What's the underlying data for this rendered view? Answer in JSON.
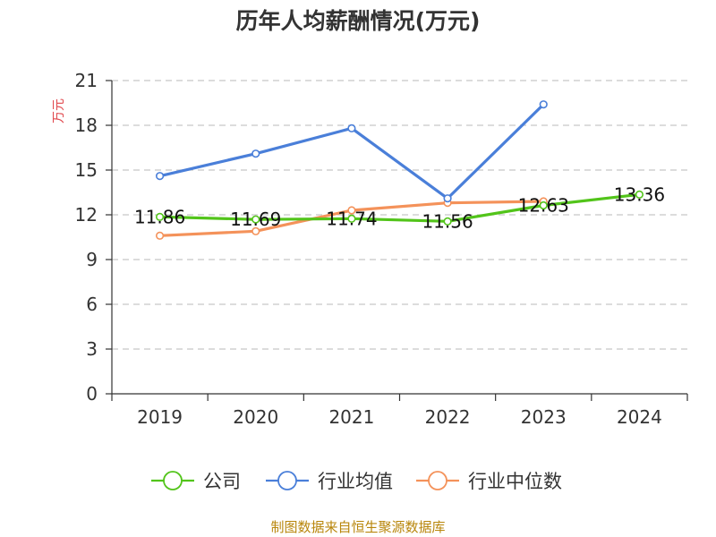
{
  "chart_data": {
    "type": "line",
    "title": "历年人均薪酬情况(万元)",
    "ylabel": "万元",
    "xlabel": "",
    "categories": [
      "2019",
      "2020",
      "2021",
      "2022",
      "2023",
      "2024"
    ],
    "ylim": [
      0,
      21
    ],
    "yticks": [
      0,
      3,
      6,
      9,
      12,
      15,
      18,
      21
    ],
    "grid": true,
    "legend_position": "bottom",
    "series": [
      {
        "name": "公司",
        "color": "#52c41a",
        "values": [
          11.86,
          11.69,
          11.74,
          11.56,
          12.63,
          13.36
        ],
        "labels": [
          "11.86",
          "11.69",
          "11.74",
          "11.56",
          "12.63",
          "13.36"
        ]
      },
      {
        "name": "行业均值",
        "color": "#4a7fd9",
        "values": [
          14.6,
          16.1,
          17.8,
          13.1,
          19.4,
          null
        ]
      },
      {
        "name": "行业中位数",
        "color": "#f4925a",
        "values": [
          10.6,
          10.9,
          12.3,
          12.8,
          12.9,
          null
        ]
      }
    ]
  },
  "source": "制图数据来自恒生聚源数据库"
}
